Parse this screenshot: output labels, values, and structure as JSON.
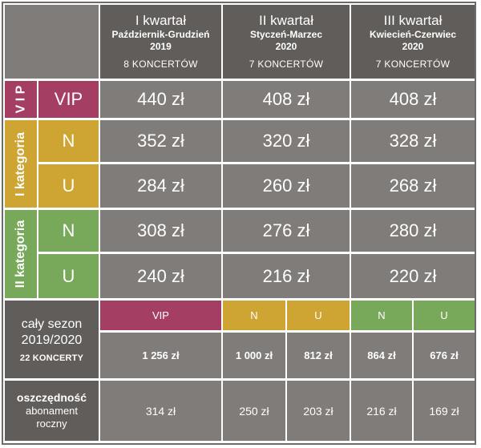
{
  "header": {
    "quarters": [
      {
        "title": "I kwartał",
        "months": "Październik-Grudzień",
        "year": "2019",
        "concerts": "8 KONCERTÓW"
      },
      {
        "title": "II kwartał",
        "months": "Styczeń-Marzec",
        "year": "2020",
        "concerts": "7 KONCERTÓW"
      },
      {
        "title": "III kwartał",
        "months": "Kwiecień-Czerwiec",
        "year": "2020",
        "concerts": "7 KONCERTÓW"
      }
    ]
  },
  "groups": {
    "vip": "V I P",
    "cat1": "I kategoria",
    "cat2": "II kategoria"
  },
  "rows": [
    {
      "sub": "VIP",
      "prices": [
        "440 zł",
        "408 zł",
        "408 zł"
      ]
    },
    {
      "sub": "N",
      "prices": [
        "352 zł",
        "320 zł",
        "328 zł"
      ]
    },
    {
      "sub": "U",
      "prices": [
        "284 zł",
        "260 zł",
        "268 zł"
      ]
    },
    {
      "sub": "N",
      "prices": [
        "308 zł",
        "276 zł",
        "280 zł"
      ]
    },
    {
      "sub": "U",
      "prices": [
        "240 zł",
        "216 zł",
        "220 zł"
      ]
    }
  ],
  "season": {
    "label_line1": "cały sezon",
    "label_line2": "2019/2020",
    "label_concerts": "22 KONCERTY",
    "tags": [
      "VIP",
      "N",
      "U",
      "N",
      "U"
    ],
    "totals": [
      "1 256 zł",
      "1 000 zł",
      "812 zł",
      "864 zł",
      "676 zł"
    ]
  },
  "savings": {
    "label_bold": "oszczędność",
    "label_line2": "abonament",
    "label_line3": "roczny",
    "values": [
      "314 zł",
      "250 zł",
      "203 zł",
      "216 zł",
      "169 zł"
    ]
  },
  "colors": {
    "vip": "#a43f63",
    "cat1": "#cea433",
    "cat2": "#78a85a",
    "header": "#615d5a",
    "cell": "#807c79"
  }
}
